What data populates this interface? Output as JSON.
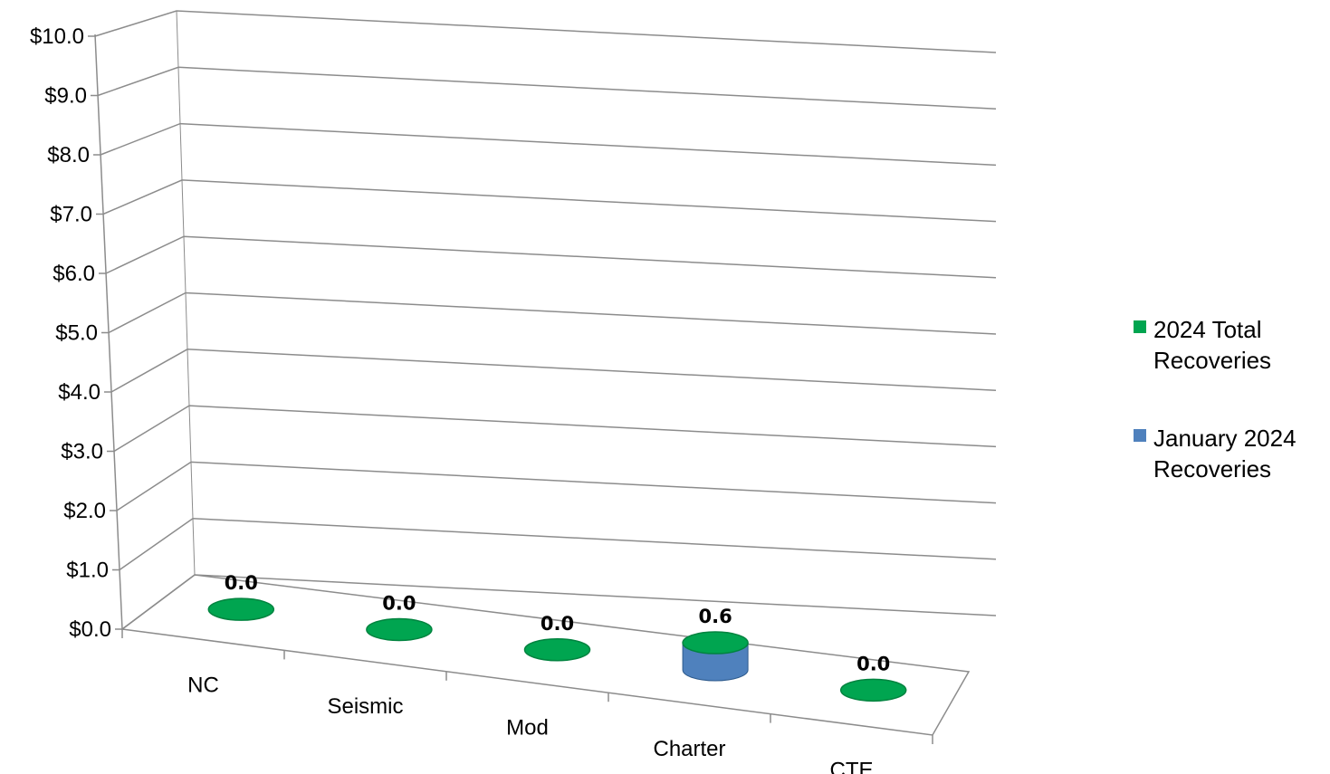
{
  "chart_data": {
    "type": "bar",
    "categories": [
      "NC",
      "Seismic",
      "Mod",
      "Charter",
      "CTE"
    ],
    "series": [
      {
        "name": "2024 Total Recoveries",
        "values": [
          0.0,
          0.0,
          0.0,
          0.6,
          0.0
        ],
        "color": "#00A550"
      },
      {
        "name": "January 2024 Recoveries",
        "values": [
          0.0,
          0.0,
          0.0,
          0.6,
          0.0
        ],
        "color": "#4F81BD"
      }
    ],
    "data_labels": [
      "0.0",
      "0.0",
      "0.0",
      "0.6",
      "0.0"
    ],
    "y_ticks": [
      "$0.0",
      "$1.0",
      "$2.0",
      "$3.0",
      "$4.0",
      "$5.0",
      "$6.0",
      "$7.0",
      "$8.0",
      "$9.0",
      "$10.0"
    ],
    "ylim": [
      0,
      10
    ],
    "grid": true,
    "legend": {
      "position": "right",
      "entries": [
        {
          "lines": [
            "2024 Total",
            "Recoveries"
          ],
          "color": "#00A550"
        },
        {
          "lines": [
            "January 2024",
            "Recoveries"
          ],
          "color": "#4F81BD"
        }
      ]
    },
    "title": "",
    "xlabel": "",
    "ylabel": "",
    "style": "3d-cylinder"
  }
}
